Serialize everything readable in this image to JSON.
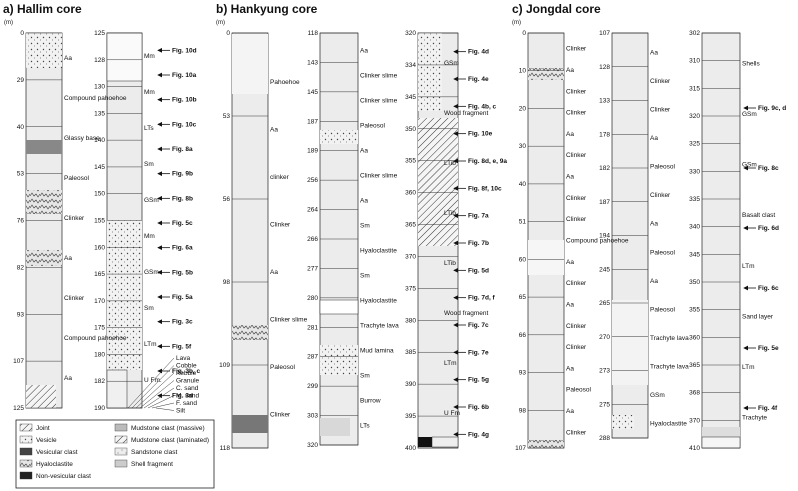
{
  "panels": {
    "a": {
      "title": "a) Hallim core",
      "unit": "(m)",
      "left_depths": [
        "0",
        "29",
        "40",
        "53",
        "76",
        "82",
        "93",
        "107",
        "125"
      ],
      "right_depths": [
        "125",
        "128",
        "130",
        "135",
        "140",
        "145",
        "150",
        "155",
        "160",
        "165",
        "170",
        "175",
        "180",
        "182",
        "190"
      ],
      "left_labels": [
        "Aa",
        "Compound pahoehoe",
        "Glassy base",
        "Paleosol",
        "Clinker",
        "Aa",
        "Clinker",
        "Compound pahoehoe",
        "Aa"
      ],
      "right_labels": [
        "Mm",
        "Mm",
        "LTs",
        "Sm",
        "GSm",
        "Mm",
        "GSm",
        "Sm",
        "LTm",
        "U Fm."
      ],
      "figs": [
        "Fig. 10d",
        "Fig. 10a",
        "Fig. 10b",
        "Fig. 10c",
        "Fig. 8a",
        "Fig. 9b",
        "Fig. 8b",
        "Fig. 5c",
        "Fig. 6a",
        "Fig. 5b",
        "Fig. 5a",
        "Fig. 3c",
        "Fig. 5f",
        "Fig. 3b, c",
        "Fig. 3d"
      ],
      "grain": [
        "Lava",
        "Cobble",
        "Pebble",
        "Granule",
        "C. sand",
        "M. sand",
        "F. sand",
        "Silt"
      ]
    },
    "b": {
      "title": "b) Hankyung core",
      "unit": "(m)",
      "c1_depths": [
        "0",
        "53",
        "56",
        "98",
        "109",
        "118"
      ],
      "c2_depths": [
        "118",
        "143",
        "145",
        "187",
        "189",
        "256",
        "264",
        "266",
        "277",
        "280",
        "281",
        "287",
        "299",
        "303",
        "320"
      ],
      "c3_depths": [
        "320",
        "334",
        "345",
        "350",
        "355",
        "360",
        "365",
        "370",
        "375",
        "380",
        "385",
        "390",
        "395",
        "400"
      ],
      "c1_labels": [
        "Pahoehoe",
        "Aa",
        "clinker",
        "Clinker",
        "Aa",
        "Clinker slime",
        "Paleosol",
        "Clinker"
      ],
      "c2_labels": [
        "Aa",
        "Clinker slime",
        "Clinker slime",
        "Paleosol",
        "Aa",
        "Clinker slime",
        "Aa",
        "Sm",
        "Hyaloclastite",
        "Sm",
        "Hyaloclastite",
        "Trachyte lava",
        "Mud lamina",
        "Sm",
        "Burrow",
        "LTs"
      ],
      "c3_labels": [
        "GSm",
        "Wood fragment",
        "LTib",
        "LTib",
        "LTib",
        "Wood fragment",
        "LTm",
        "U Fm"
      ],
      "figs": [
        "Fig. 4d",
        "Fig. 4e",
        "Fig. 4b, c",
        "Fig. 10e",
        "Fig. 8d, e, 9a",
        "Fig. 8f, 10c",
        "Fig. 7a",
        "Fig. 7b",
        "Fig. 5d",
        "Fig. 7d, f",
        "Fig. 7c",
        "Fig. 7e",
        "Fig. 5g",
        "Fig. 6b",
        "Fig. 4g"
      ]
    },
    "c": {
      "title": "c) Jongdal core",
      "unit": "(m)",
      "c1_depths": [
        "0",
        "10",
        "20",
        "30",
        "40",
        "51",
        "60",
        "65",
        "66",
        "93",
        "98",
        "107"
      ],
      "c2_depths": [
        "107",
        "128",
        "133",
        "178",
        "182",
        "187",
        "194",
        "245",
        "265",
        "270",
        "273",
        "275",
        "288"
      ],
      "c3_depths": [
        "302",
        "310",
        "315",
        "320",
        "325",
        "330",
        "335",
        "340",
        "345",
        "350",
        "355",
        "360",
        "365",
        "368",
        "370",
        "410"
      ],
      "c1_labels": [
        "Clinker",
        "Aa",
        "Clinker",
        "Clinker",
        "Aa",
        "Clinker",
        "Aa",
        "Clinker",
        "Clinker",
        "Compound pahoehoe",
        "Aa",
        "Clinker",
        "Aa",
        "Clinker",
        "Clinker",
        "Aa",
        "Paleosol",
        "Aa",
        "Clinker"
      ],
      "c2_labels": [
        "Aa",
        "Clinker",
        "Clinker",
        "Aa",
        "Paleosol",
        "Clinker",
        "Aa",
        "Paleosol",
        "Aa",
        "Paleosol",
        "Trachyte lava",
        "Trachyte lava",
        "GSm",
        "Hyaloclastite"
      ],
      "c3_labels": [
        "Shells",
        "GSm",
        "GSm",
        "Basalt clast",
        "LTm",
        "Sand layer",
        "LTm",
        "Trachyte"
      ],
      "figs": [
        "Fig. 9c, d",
        "Fig. 8c",
        "Fig. 6d",
        "Fig. 6c",
        "Fig. 5e",
        "Fig. 4f"
      ]
    }
  },
  "legend": {
    "items": [
      "Joint",
      "Vesicle",
      "Vesicular clast",
      "Hyaloclastite",
      "Non-vesicular clast",
      "Mudstone clast (massive)",
      "Mudstone clast (laminated)",
      "Sandstone clast",
      "Shell fragment"
    ]
  }
}
